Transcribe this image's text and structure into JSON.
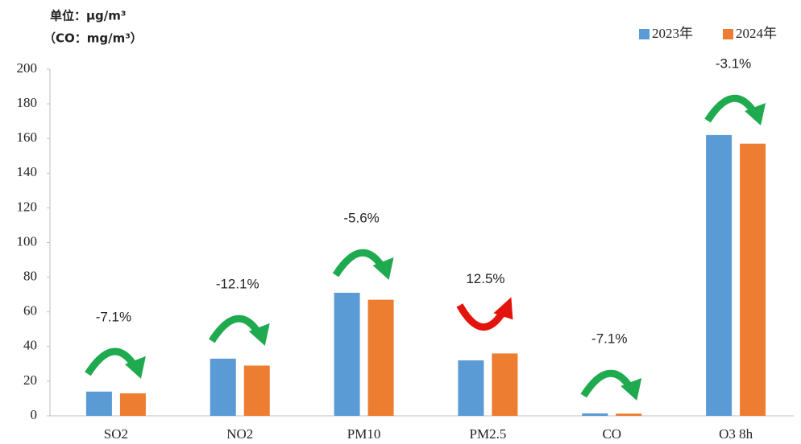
{
  "chart_data": {
    "type": "bar",
    "unit_label": "单位：μg/m³",
    "unit_note": "（CO：mg/m³）",
    "categories": [
      "SO2",
      "NO2",
      "PM10",
      "PM2.5",
      "CO",
      "O3  8h"
    ],
    "series": [
      {
        "name": "2023年",
        "color": "#5b9bd5",
        "values": [
          14,
          33,
          71,
          32,
          1.4,
          162
        ]
      },
      {
        "name": "2024年",
        "color": "#ed7d31",
        "values": [
          13,
          29,
          67,
          36,
          1.3,
          157
        ]
      }
    ],
    "annotations": [
      "-7.1%",
      "-12.1%",
      "-5.6%",
      "12.5%",
      "-7.1%",
      "-3.1%"
    ],
    "ylim": [
      0,
      200
    ],
    "yticks": [
      0,
      20,
      40,
      60,
      80,
      100,
      120,
      140,
      160,
      180,
      200
    ],
    "grid": false,
    "legend": "top-right"
  }
}
